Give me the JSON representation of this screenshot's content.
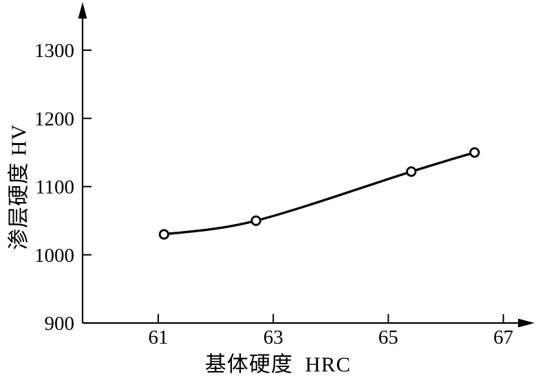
{
  "figure": {
    "background": "#ffffff",
    "ink_color": "#000000"
  },
  "chart_data": {
    "type": "line",
    "title": "",
    "xlabel": "基体硬度  HRC",
    "ylabel": "渗层硬度 HV",
    "x": [
      61.1,
      62.7,
      65.4,
      66.5
    ],
    "y": [
      1030,
      1050,
      1122,
      1150
    ],
    "x_ticks": [
      61,
      63,
      65,
      67
    ],
    "y_ticks": [
      900,
      1000,
      1100,
      1200,
      1300
    ],
    "xlim": [
      59.7,
      67.6
    ],
    "ylim": [
      900,
      1370
    ],
    "grid": false,
    "legend_position": "none",
    "line_color": "#000000",
    "marker": "open-circle",
    "marker_fill": "#ffffff",
    "axis_color": "#000000"
  }
}
